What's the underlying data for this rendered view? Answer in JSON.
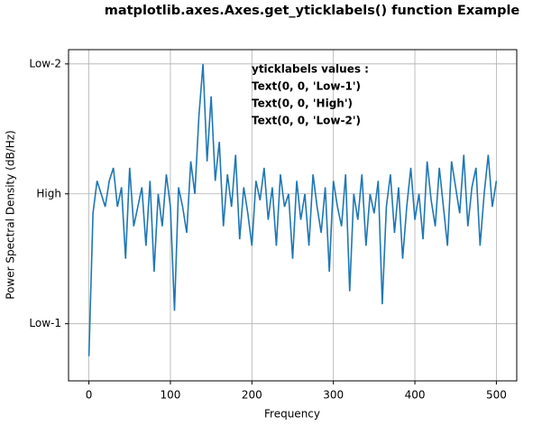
{
  "chart_data": {
    "type": "line",
    "title": "matplotlib.axes.Axes.get_yticklabels() function Example",
    "xlabel": "Frequency",
    "ylabel": "Power Spectral Density (dB/Hz)",
    "annotation": [
      "yticklabels values :",
      "Text(0, 0, 'Low-1')",
      "Text(0, 0, 'High')",
      "Text(0, 0, 'Low-2')"
    ],
    "x": [
      0,
      5,
      10,
      15,
      20,
      25,
      30,
      35,
      40,
      45,
      50,
      55,
      60,
      65,
      70,
      75,
      80,
      85,
      90,
      95,
      100,
      105,
      110,
      115,
      120,
      125,
      130,
      135,
      140,
      145,
      150,
      155,
      160,
      165,
      170,
      175,
      180,
      185,
      190,
      195,
      200,
      205,
      210,
      215,
      220,
      225,
      230,
      235,
      240,
      245,
      250,
      255,
      260,
      265,
      270,
      275,
      280,
      285,
      290,
      295,
      300,
      305,
      310,
      315,
      320,
      325,
      330,
      335,
      340,
      345,
      350,
      355,
      360,
      365,
      370,
      375,
      380,
      385,
      390,
      395,
      400,
      405,
      410,
      415,
      420,
      425,
      430,
      435,
      440,
      445,
      450,
      455,
      460,
      465,
      470,
      475,
      480,
      485,
      490,
      495,
      500
    ],
    "series": [
      {
        "color": "#1f77b4",
        "values": [
          -45,
          -23,
          -18,
          -20,
          -22,
          -18,
          -16,
          -22,
          -19,
          -30,
          -16,
          -25,
          -22,
          -19,
          -28,
          -18,
          -32,
          -20,
          -25,
          -17,
          -22,
          -38,
          -19,
          -22,
          -26,
          -15,
          -20,
          -8,
          0,
          -15,
          -5,
          -18,
          -12,
          -25,
          -17,
          -22,
          -14,
          -27,
          -19,
          -23,
          -28,
          -18,
          -21,
          -16,
          -24,
          -19,
          -28,
          -17,
          -22,
          -20,
          -30,
          -18,
          -24,
          -20,
          -28,
          -17,
          -22,
          -26,
          -19,
          -32,
          -18,
          -22,
          -25,
          -17,
          -35,
          -20,
          -24,
          -17,
          -28,
          -20,
          -23,
          -18,
          -37,
          -22,
          -17,
          -26,
          -19,
          -30,
          -22,
          -16,
          -24,
          -20,
          -27,
          -15,
          -21,
          -25,
          -16,
          -22,
          -28,
          -15,
          -19,
          -23,
          -14,
          -25,
          -19,
          -16,
          -28,
          -20,
          -14,
          -22,
          -18
        ]
      }
    ],
    "xlim": [
      -25,
      525
    ],
    "ylim": [
      -48.8,
      2.2
    ],
    "xticks": [
      0,
      100,
      200,
      300,
      400,
      500
    ],
    "yticks": [
      {
        "value": -40,
        "label": "Low-1"
      },
      {
        "value": -20,
        "label": "High"
      },
      {
        "value": 0,
        "label": "Low-2"
      }
    ],
    "grid": true
  }
}
